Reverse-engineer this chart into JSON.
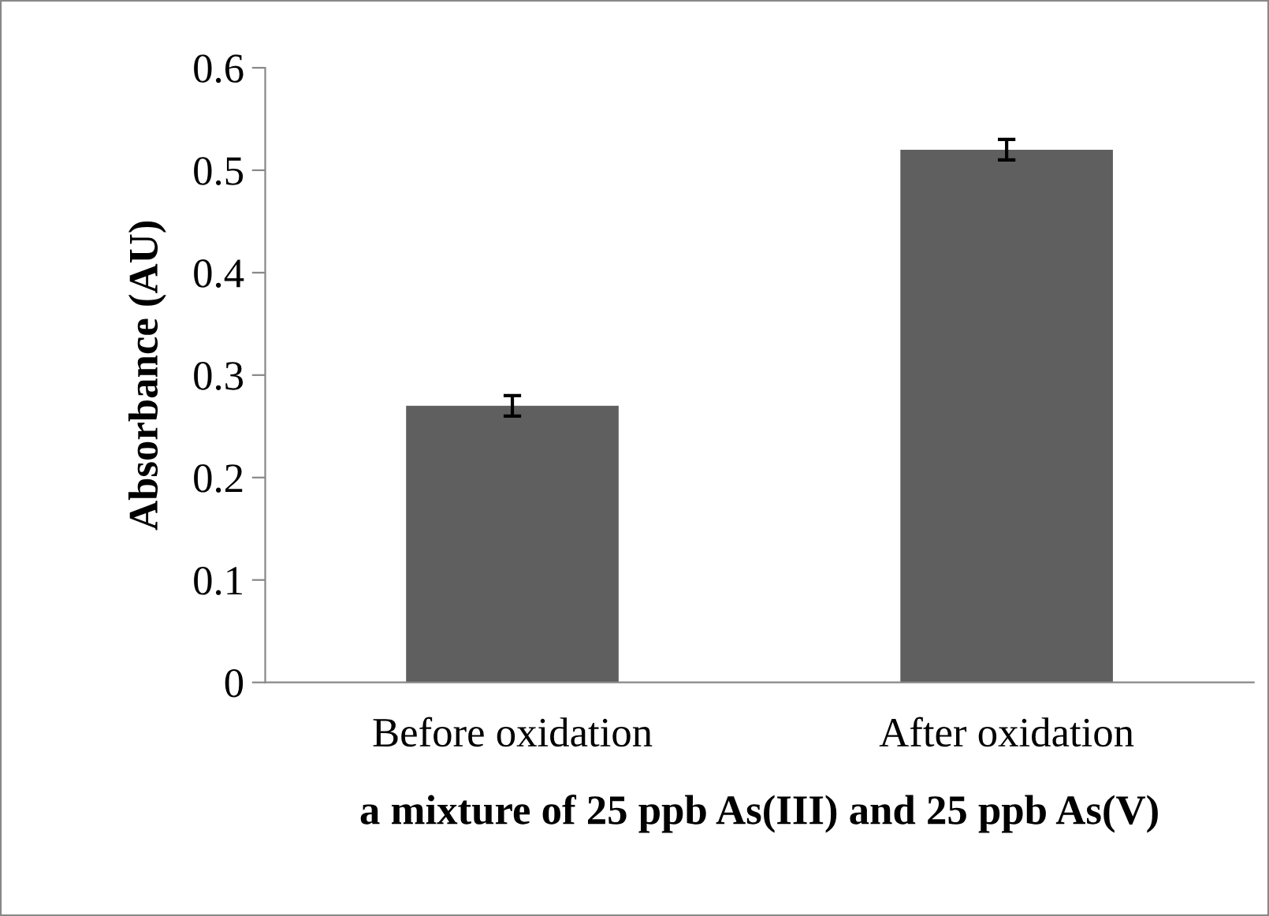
{
  "chart_data": {
    "type": "bar",
    "categories": [
      "Before oxidation",
      "After oxidation"
    ],
    "values": [
      0.27,
      0.52
    ],
    "errors": [
      0.01,
      0.01
    ],
    "color": "#5f5f5f",
    "xlabel": "a mixture of 25 ppb As(III) and 25 ppb As(V)",
    "ylabel": "Absorbance (AU)",
    "ylim": [
      0,
      0.6
    ],
    "yticks": [
      0,
      0.1,
      0.2,
      0.3,
      0.4,
      0.5,
      0.6
    ],
    "grid": false,
    "legend": false
  }
}
